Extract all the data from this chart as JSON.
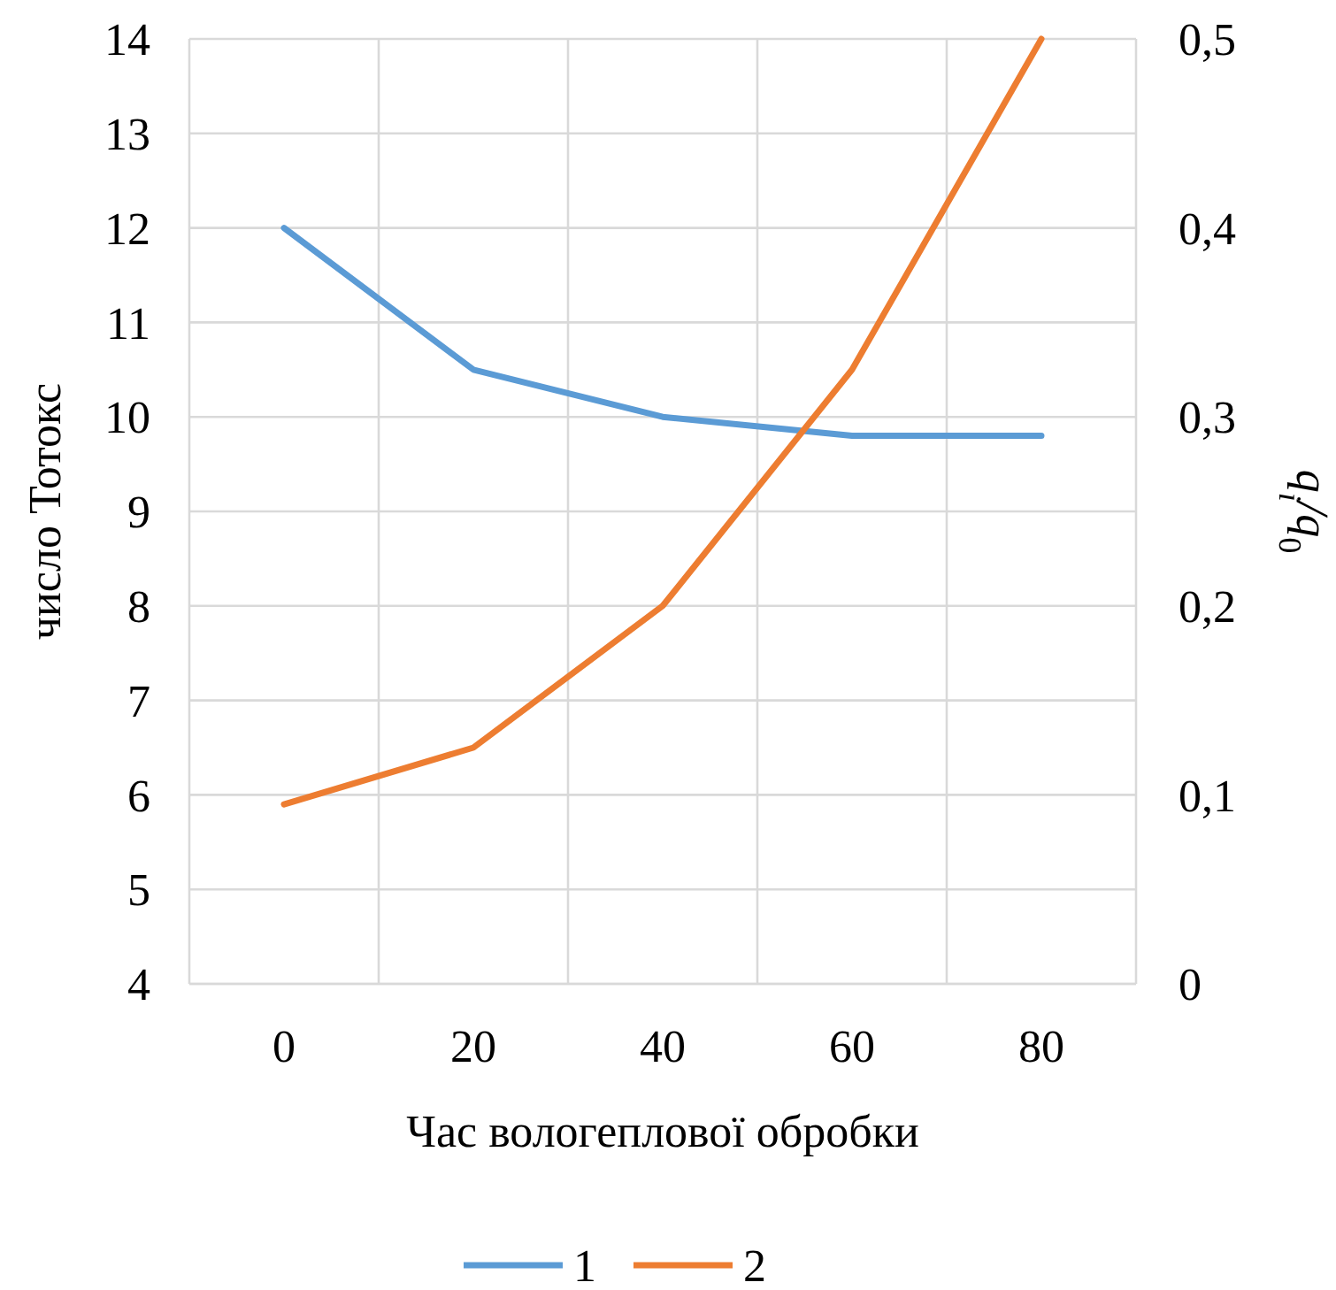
{
  "chart_data": {
    "type": "line",
    "xlabel": "Час вологеплової обробки",
    "ylabel": "число Тотокс",
    "y2label": "q$_{i}$/q$_{0}$",
    "categories": [
      "0",
      "20",
      "40",
      "60",
      "80"
    ],
    "series": [
      {
        "name": "1",
        "color": "#5b9bd5",
        "values": [
          12,
          10.5,
          10,
          9.8,
          9.8
        ]
      },
      {
        "name": "2",
        "color": "#ed7d31",
        "axis": "y2",
        "values": [
          0.095,
          0.125,
          0.2,
          0.325,
          0.5
        ]
      }
    ],
    "ylim": [
      4,
      14
    ],
    "yticks": [
      4,
      5,
      6,
      7,
      8,
      9,
      10,
      11,
      12,
      13,
      14
    ],
    "y2lim": [
      0,
      0.5
    ],
    "y2ticks": [
      0,
      {
        "value": 0.1,
        "label": "0,1"
      },
      {
        "value": 0.2,
        "label": "0,2"
      },
      {
        "value": 0.3,
        "label": "0,3"
      },
      {
        "value": 0.4,
        "label": "0,4"
      },
      {
        "value": 0.5,
        "label": "0,5"
      }
    ],
    "grid": true,
    "legend": "bottom",
    "marker": "none",
    "line_style": "solid"
  }
}
